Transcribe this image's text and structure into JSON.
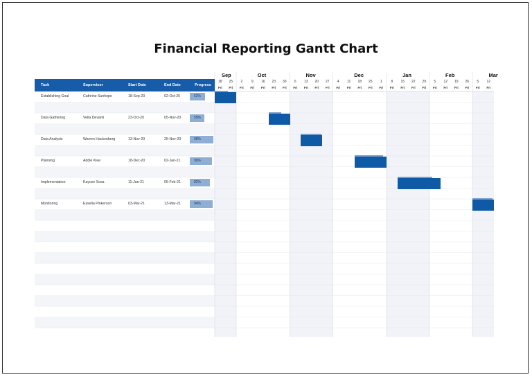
{
  "title": "Financial Reporting Gantt Chart",
  "colors": {
    "header": "#175ca8",
    "bar": "#0f5aa7",
    "progress": "#8eaed3",
    "band": "#f1f3f9"
  },
  "columns": {
    "task": "Task",
    "supervisor": "Supervisor",
    "start": "Start Date",
    "end": "End Date",
    "progress": "Progress"
  },
  "months": [
    "Sep",
    "Oct",
    "Nov",
    "Dec",
    "Jan",
    "Feb",
    "Mar"
  ],
  "days": [
    "18",
    "25",
    "2",
    "9",
    "16",
    "23",
    "30",
    "6",
    "13",
    "20",
    "27",
    "4",
    "11",
    "18",
    "25",
    "1",
    "8",
    "15",
    "22",
    "29",
    "5",
    "12",
    "19",
    "26",
    "5",
    "12"
  ],
  "weekday": "Fri",
  "tasks": [
    {
      "task": "Establishing Goal",
      "supervisor": "Cathrine Sunhope",
      "start": "18-Sep-20",
      "end": "02-Oct-20",
      "progress": "62%",
      "progress_value": 0.62,
      "start_week": 0,
      "end_week": 2
    },
    {
      "task": "Data Gathering",
      "supervisor": "Vella Devanti",
      "start": "23-Oct-20",
      "end": "05-Nov-20",
      "progress": "59%",
      "progress_value": 0.59,
      "start_week": 5,
      "end_week": 7
    },
    {
      "task": "Data Analysis",
      "supervisor": "Warren Hackenberg",
      "start": "13-Nov-20",
      "end": "25-Nov-20",
      "progress": "98%",
      "progress_value": 0.98,
      "start_week": 8,
      "end_week": 10
    },
    {
      "task": "Planning",
      "supervisor": "Addie Klee",
      "start": "18-Dec-20",
      "end": "02-Jan-21",
      "progress": "90%",
      "progress_value": 0.9,
      "start_week": 13,
      "end_week": 16
    },
    {
      "task": "Implementation",
      "supervisor": "Kaycee Sosa",
      "start": "11-Jan-21",
      "end": "05-Feb-21",
      "progress": "82%",
      "progress_value": 0.82,
      "start_week": 17,
      "end_week": 21
    },
    {
      "task": "Monitoring",
      "supervisor": "Essella Pinkerson",
      "start": "03-Mar-21",
      "end": "13-Mar-21",
      "progress": "94%",
      "progress_value": 0.94,
      "start_week": 24,
      "end_week": 26
    }
  ]
}
